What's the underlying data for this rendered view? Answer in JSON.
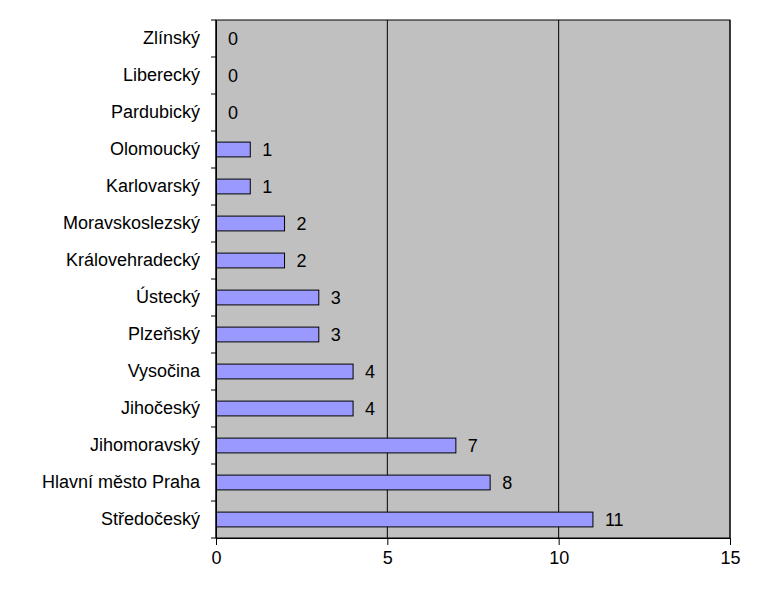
{
  "chart_data": {
    "type": "bar",
    "orientation": "horizontal",
    "categories": [
      "Zlínský",
      "Liberecký",
      "Pardubický",
      "Olomoucký",
      "Karlovarský",
      "Moravskoslezský",
      "Královehradecký",
      "Ústecký",
      "Plzeňský",
      "Vysočina",
      "Jihočeský",
      "Jihomoravský",
      "Hlavní město Praha",
      "Středočeský"
    ],
    "values": [
      0,
      0,
      0,
      1,
      1,
      2,
      2,
      3,
      3,
      4,
      4,
      7,
      8,
      11
    ],
    "color": "#9999ff",
    "xlim": [
      0,
      15
    ],
    "xticks": [
      0,
      5,
      10,
      15
    ],
    "grid": true,
    "data_labels": true
  }
}
